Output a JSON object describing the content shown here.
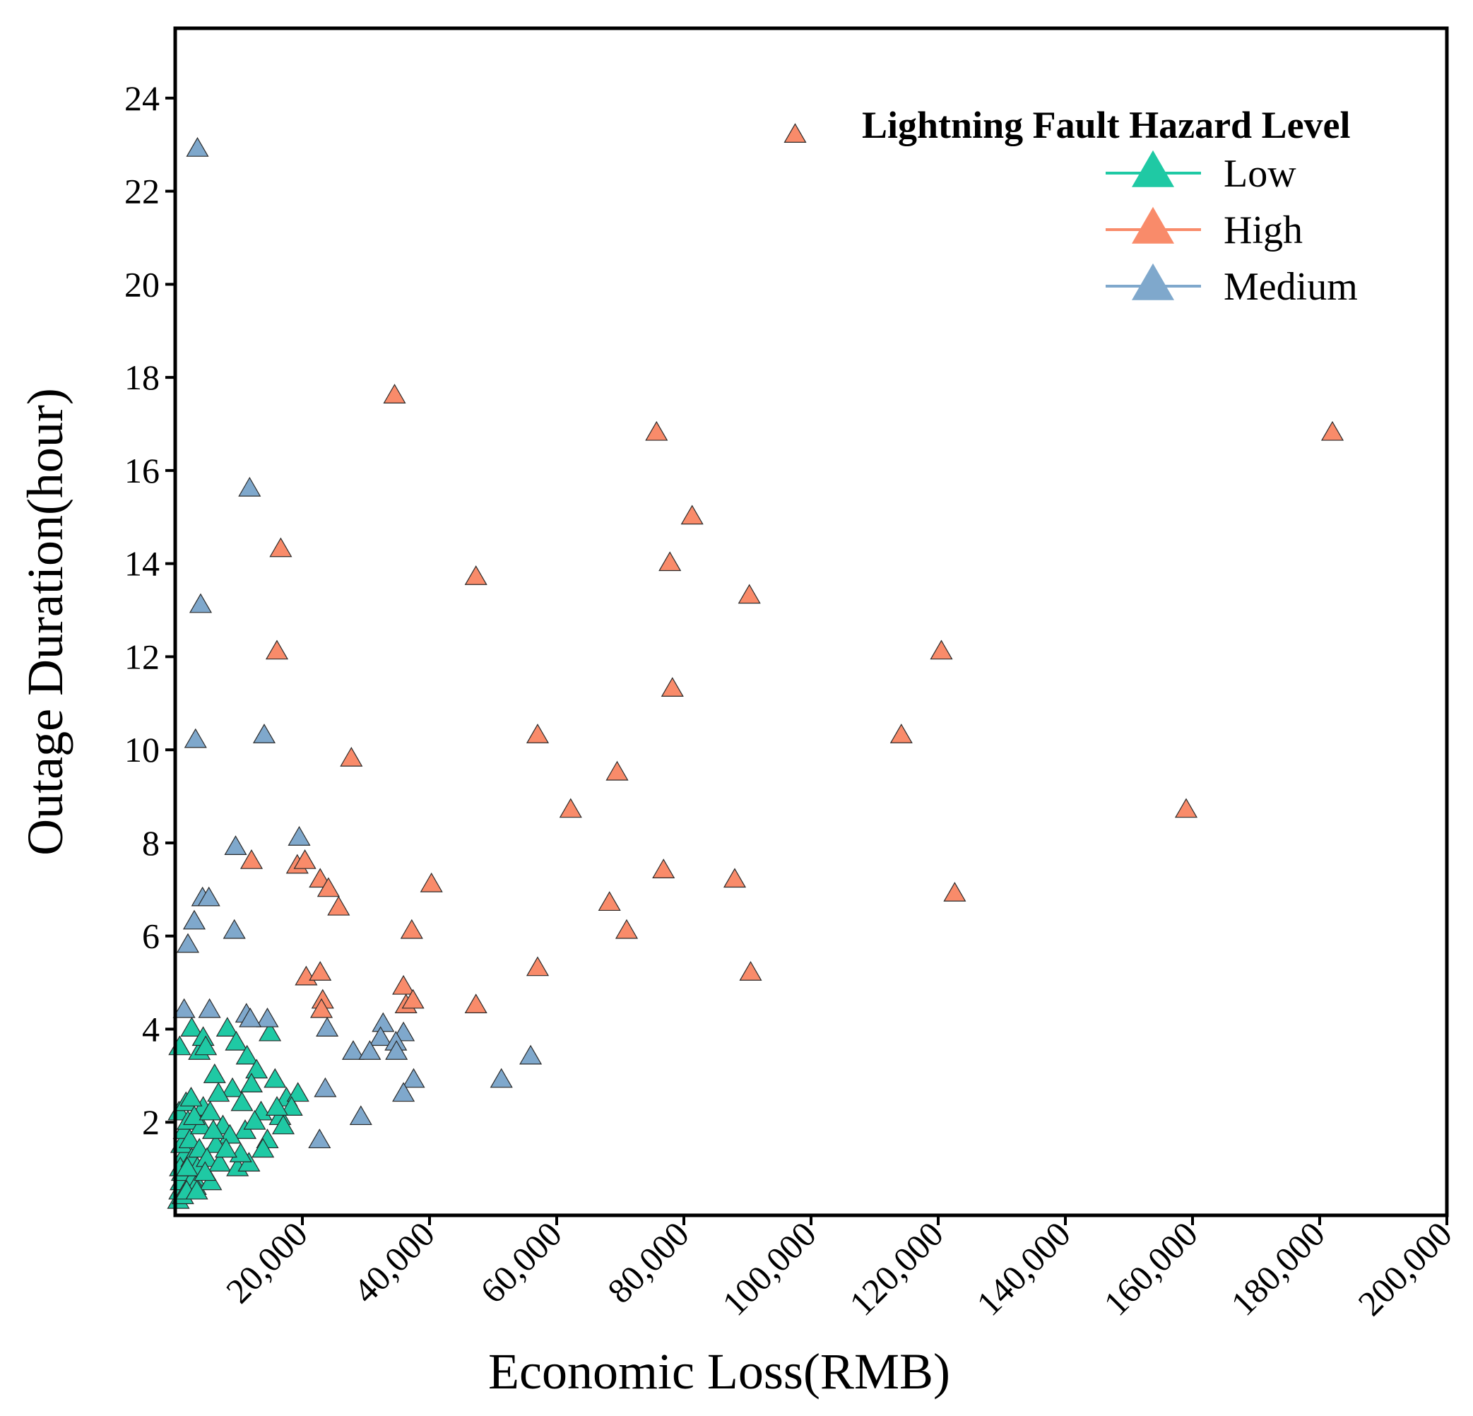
{
  "chart_data": {
    "type": "scatter",
    "xlabel": "Economic Loss(RMB)",
    "ylabel": "Outage Duration(hour)",
    "xlim": [
      0,
      200000
    ],
    "ylim": [
      0,
      25.5
    ],
    "x_ticks": [
      20000,
      40000,
      60000,
      80000,
      100000,
      120000,
      140000,
      160000,
      180000,
      200000
    ],
    "x_tick_labels": [
      "20,000",
      "40,000",
      "60,000",
      "80,000",
      "100,000",
      "120,000",
      "140,000",
      "160,000",
      "180,000",
      "200,000"
    ],
    "y_ticks": [
      2,
      4,
      6,
      8,
      10,
      12,
      14,
      16,
      18,
      20,
      22,
      24
    ],
    "y_tick_labels": [
      "2",
      "4",
      "6",
      "8",
      "10",
      "12",
      "14",
      "16",
      "18",
      "20",
      "22",
      "24"
    ],
    "legend_title": "Lightning Fault Hazard Level",
    "legend_position": "top-right",
    "marker": "triangle",
    "series": [
      {
        "name": "Low",
        "color": "#1FC9A4",
        "points": [
          [
            500,
            0.3
          ],
          [
            700,
            0.5
          ],
          [
            900,
            0.7
          ],
          [
            1100,
            0.9
          ],
          [
            1300,
            1.1
          ],
          [
            1500,
            1.3
          ],
          [
            1200,
            0.4
          ],
          [
            800,
            1.0
          ],
          [
            1000,
            1.5
          ],
          [
            1400,
            1.8
          ],
          [
            600,
            2.2
          ],
          [
            1700,
            2.4
          ],
          [
            2000,
            2.0
          ],
          [
            2300,
            1.6
          ],
          [
            2600,
            1.2
          ],
          [
            2900,
            0.8
          ],
          [
            3200,
            0.6
          ],
          [
            3500,
            1.0
          ],
          [
            3800,
            1.4
          ],
          [
            4100,
            1.9
          ],
          [
            4400,
            2.3
          ],
          [
            1800,
            0.5
          ],
          [
            2500,
            2.5
          ],
          [
            3000,
            2.1
          ],
          [
            700,
            3.6
          ],
          [
            2600,
            4.0
          ],
          [
            3800,
            3.5
          ],
          [
            4400,
            3.8
          ],
          [
            4800,
            3.6
          ],
          [
            6200,
            3.0
          ],
          [
            8200,
            4.0
          ],
          [
            9600,
            3.7
          ],
          [
            11300,
            3.4
          ],
          [
            12800,
            3.1
          ],
          [
            14900,
            3.9
          ],
          [
            15700,
            2.9
          ],
          [
            12000,
            2.8
          ],
          [
            9000,
            2.7
          ],
          [
            6800,
            2.6
          ],
          [
            5500,
            2.2
          ],
          [
            7500,
            1.9
          ],
          [
            10500,
            2.4
          ],
          [
            13500,
            2.2
          ],
          [
            16500,
            2.1
          ],
          [
            17500,
            2.5
          ],
          [
            19300,
            2.6
          ],
          [
            18300,
            2.3
          ],
          [
            17000,
            1.9
          ],
          [
            14500,
            1.6
          ],
          [
            11000,
            1.8
          ],
          [
            8600,
            1.7
          ],
          [
            6400,
            1.5
          ],
          [
            5000,
            1.2
          ],
          [
            7000,
            1.1
          ],
          [
            9800,
            1.0
          ],
          [
            11600,
            1.1
          ],
          [
            13800,
            1.4
          ],
          [
            16000,
            2.3
          ],
          [
            10300,
            1.3
          ],
          [
            8000,
            1.4
          ],
          [
            5600,
            0.7
          ],
          [
            3400,
            0.5
          ],
          [
            1900,
            1.0
          ],
          [
            4700,
            0.9
          ],
          [
            6000,
            1.8
          ],
          [
            12500,
            2.0
          ]
        ]
      },
      {
        "name": "High",
        "color": "#F98B6A",
        "points": [
          [
            97500,
            23.2
          ],
          [
            34500,
            17.6
          ],
          [
            75700,
            16.8
          ],
          [
            182000,
            16.8
          ],
          [
            81300,
            15.0
          ],
          [
            16600,
            14.3
          ],
          [
            47300,
            13.7
          ],
          [
            77800,
            14.0
          ],
          [
            90300,
            13.3
          ],
          [
            16000,
            12.1
          ],
          [
            120500,
            12.1
          ],
          [
            78200,
            11.3
          ],
          [
            57000,
            10.3
          ],
          [
            114200,
            10.3
          ],
          [
            27700,
            9.8
          ],
          [
            69500,
            9.5
          ],
          [
            62200,
            8.7
          ],
          [
            159000,
            8.7
          ],
          [
            12000,
            7.6
          ],
          [
            19200,
            7.5
          ],
          [
            20400,
            7.6
          ],
          [
            22800,
            7.2
          ],
          [
            24100,
            7.0
          ],
          [
            76800,
            7.4
          ],
          [
            88000,
            7.2
          ],
          [
            40300,
            7.1
          ],
          [
            122600,
            6.9
          ],
          [
            25700,
            6.6
          ],
          [
            68300,
            6.7
          ],
          [
            37200,
            6.1
          ],
          [
            71000,
            6.1
          ],
          [
            20600,
            5.1
          ],
          [
            22800,
            5.2
          ],
          [
            57000,
            5.3
          ],
          [
            90500,
            5.2
          ],
          [
            35900,
            4.9
          ],
          [
            23200,
            4.6
          ],
          [
            23000,
            4.4
          ],
          [
            36300,
            4.5
          ],
          [
            37400,
            4.6
          ],
          [
            47300,
            4.5
          ]
        ]
      },
      {
        "name": "Medium",
        "color": "#7FA8CC",
        "points": [
          [
            3500,
            22.9
          ],
          [
            11700,
            15.6
          ],
          [
            4000,
            13.1
          ],
          [
            3200,
            10.2
          ],
          [
            14000,
            10.3
          ],
          [
            19500,
            8.1
          ],
          [
            9500,
            7.9
          ],
          [
            4300,
            6.8
          ],
          [
            5300,
            6.8
          ],
          [
            3000,
            6.3
          ],
          [
            9300,
            6.1
          ],
          [
            2000,
            5.8
          ],
          [
            1400,
            4.4
          ],
          [
            5400,
            4.4
          ],
          [
            11200,
            4.3
          ],
          [
            14500,
            4.2
          ],
          [
            11800,
            4.2
          ],
          [
            23900,
            4.0
          ],
          [
            32700,
            4.1
          ],
          [
            35900,
            3.9
          ],
          [
            32300,
            3.8
          ],
          [
            34700,
            3.7
          ],
          [
            28000,
            3.5
          ],
          [
            30600,
            3.5
          ],
          [
            34800,
            3.5
          ],
          [
            55900,
            3.4
          ],
          [
            37500,
            2.9
          ],
          [
            51300,
            2.9
          ],
          [
            35900,
            2.6
          ],
          [
            23600,
            2.7
          ],
          [
            29200,
            2.1
          ],
          [
            22700,
            1.6
          ]
        ]
      }
    ]
  }
}
